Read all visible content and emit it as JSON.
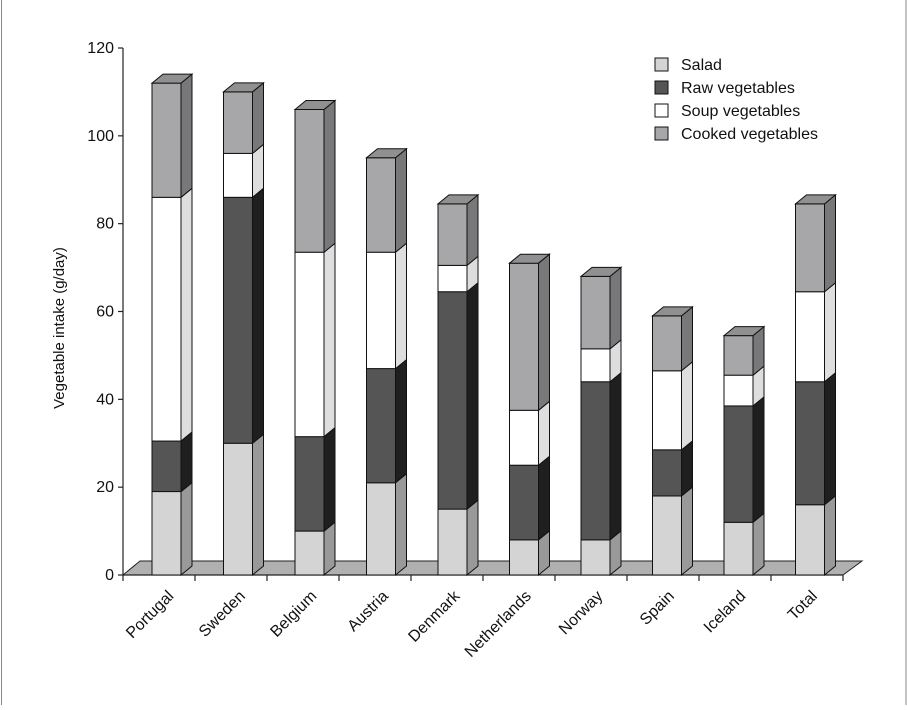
{
  "chart_data": {
    "type": "bar",
    "stacked": true,
    "three_d": true,
    "title": "",
    "xlabel": "",
    "ylabel": "Vegetable intake (g/day)",
    "ylim": [
      0,
      120
    ],
    "yticks": [
      0,
      20,
      40,
      60,
      80,
      100,
      120
    ],
    "grid": false,
    "legend_position": "top-right",
    "categories": [
      "Portugal",
      "Sweden",
      "Belgium",
      "Austria",
      "Denmark",
      "Netherlands",
      "Norway",
      "Spain",
      "Iceland",
      "Total"
    ],
    "series": [
      {
        "name": "Salad",
        "color": "#d4d4d4",
        "values": [
          19,
          30,
          10,
          21,
          15,
          8,
          8,
          18,
          12,
          16
        ]
      },
      {
        "name": "Raw vegetables",
        "color": "#555555",
        "values": [
          11.5,
          56,
          21.5,
          26,
          49.5,
          17,
          36,
          10.5,
          26.5,
          28
        ]
      },
      {
        "name": "Soup vegetables",
        "color": "#ffffff",
        "values": [
          55.5,
          10,
          42,
          26.5,
          6,
          12.5,
          7.5,
          18,
          7,
          20.5
        ]
      },
      {
        "name": "Cooked vegetables",
        "color": "#a7a7a9",
        "values": [
          26,
          14,
          32.5,
          21.5,
          14,
          33.5,
          16.5,
          12.5,
          9,
          20
        ]
      }
    ]
  }
}
